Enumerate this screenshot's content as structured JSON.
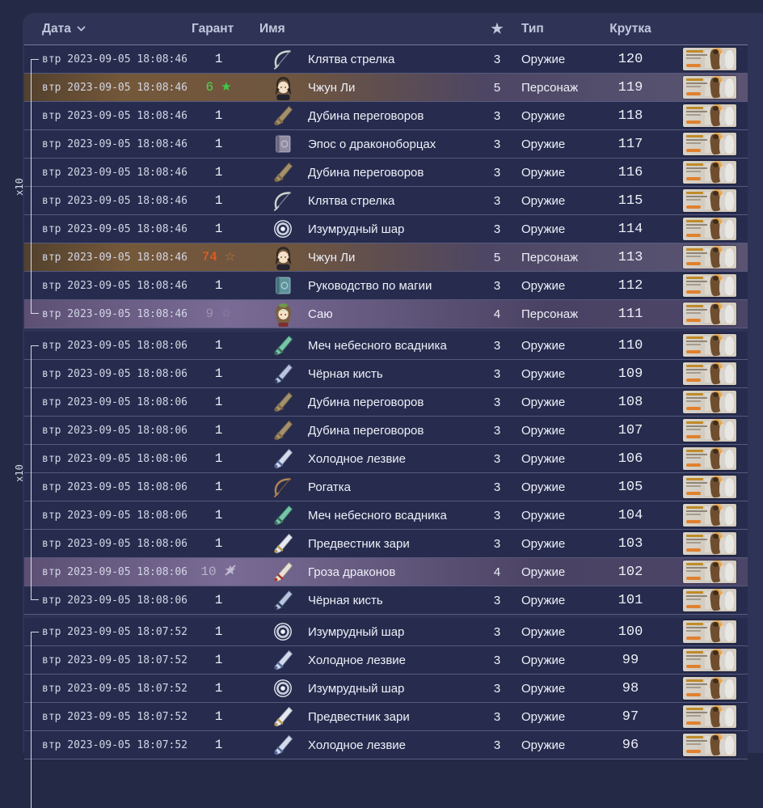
{
  "header": {
    "date_label": "Дата",
    "guarantee_label": "Гарант",
    "name_label": "Имя",
    "stars_label": "★",
    "type_label": "Тип",
    "roll_label": "Крутка"
  },
  "colors": {
    "panel_bg": "#2f3457",
    "row_bg": "#272c4e",
    "row_5star_accent": "#74583a",
    "row_4star_accent": "#796b95",
    "pity": {
      "win": {
        "num": "#46da4f",
        "icon": "#3ecb47"
      },
      "lose": {
        "num": "#ff5c1e",
        "icon": "#c27a42"
      },
      "char4": {
        "num": "#9a94ad",
        "icon": "#8d87a3"
      },
      "weap4": {
        "num": "#b9b3c9",
        "icon": "#c6c1d5"
      }
    }
  },
  "groups": [
    {
      "label": "x10",
      "rows": [
        {
          "date": "втр 2023-09-05 18:08:46",
          "pity": "1",
          "pity_style": "",
          "pity_icon": "",
          "item": "Клятва стрелка",
          "item_icon": "bow-icon",
          "stars": "3",
          "type": "Оружие",
          "roll": "120",
          "highlight": ""
        },
        {
          "date": "втр 2023-09-05 18:08:46",
          "pity": "6",
          "pity_style": "win",
          "pity_icon": "star-filled-icon",
          "item": "Чжун Ли",
          "item_icon": "zhongli-portrait-icon",
          "stars": "5",
          "type": "Персонаж",
          "roll": "119",
          "highlight": "gold"
        },
        {
          "date": "втр 2023-09-05 18:08:46",
          "pity": "1",
          "pity_style": "",
          "pity_icon": "",
          "item": "Дубина переговоров",
          "item_icon": "claymore-icon",
          "stars": "3",
          "type": "Оружие",
          "roll": "118",
          "highlight": ""
        },
        {
          "date": "втр 2023-09-05 18:08:46",
          "pity": "1",
          "pity_style": "",
          "pity_icon": "",
          "item": "Эпос о драконоборцах",
          "item_icon": "book-purple-icon",
          "stars": "3",
          "type": "Оружие",
          "roll": "117",
          "highlight": ""
        },
        {
          "date": "втр 2023-09-05 18:08:46",
          "pity": "1",
          "pity_style": "",
          "pity_icon": "",
          "item": "Дубина переговоров",
          "item_icon": "claymore-icon",
          "stars": "3",
          "type": "Оружие",
          "roll": "116",
          "highlight": ""
        },
        {
          "date": "втр 2023-09-05 18:08:46",
          "pity": "1",
          "pity_style": "",
          "pity_icon": "",
          "item": "Клятва стрелка",
          "item_icon": "bow-icon",
          "stars": "3",
          "type": "Оружие",
          "roll": "115",
          "highlight": ""
        },
        {
          "date": "втр 2023-09-05 18:08:46",
          "pity": "1",
          "pity_style": "",
          "pity_icon": "",
          "item": "Изумрудный шар",
          "item_icon": "catalyst-icon",
          "stars": "3",
          "type": "Оружие",
          "roll": "114",
          "highlight": ""
        },
        {
          "date": "втр 2023-09-05 18:08:46",
          "pity": "74",
          "pity_style": "lose",
          "pity_icon": "star-outline-icon",
          "item": "Чжун Ли",
          "item_icon": "zhongli-portrait-icon",
          "stars": "5",
          "type": "Персонаж",
          "roll": "113",
          "highlight": "gold"
        },
        {
          "date": "втр 2023-09-05 18:08:46",
          "pity": "1",
          "pity_style": "",
          "pity_icon": "",
          "item": "Руководство по магии",
          "item_icon": "book-teal-icon",
          "stars": "3",
          "type": "Оружие",
          "roll": "112",
          "highlight": ""
        },
        {
          "date": "втр 2023-09-05 18:08:46",
          "pity": "9",
          "pity_style": "char4",
          "pity_icon": "star-outline-icon",
          "item": "Саю",
          "item_icon": "sayu-portrait-icon",
          "stars": "4",
          "type": "Персонаж",
          "roll": "111",
          "highlight": "purple"
        }
      ]
    },
    {
      "label": "x10",
      "rows": [
        {
          "date": "втр 2023-09-05 18:08:06",
          "pity": "1",
          "pity_style": "",
          "pity_icon": "",
          "item": "Меч небесного всадника",
          "item_icon": "sword-teal-icon",
          "stars": "3",
          "type": "Оружие",
          "roll": "110",
          "highlight": ""
        },
        {
          "date": "втр 2023-09-05 18:08:06",
          "pity": "1",
          "pity_style": "",
          "pity_icon": "",
          "item": "Чёрная кисть",
          "item_icon": "polearm-dark-icon",
          "stars": "3",
          "type": "Оружие",
          "roll": "109",
          "highlight": ""
        },
        {
          "date": "втр 2023-09-05 18:08:06",
          "pity": "1",
          "pity_style": "",
          "pity_icon": "",
          "item": "Дубина переговоров",
          "item_icon": "claymore-icon",
          "stars": "3",
          "type": "Оружие",
          "roll": "108",
          "highlight": ""
        },
        {
          "date": "втр 2023-09-05 18:08:06",
          "pity": "1",
          "pity_style": "",
          "pity_icon": "",
          "item": "Дубина переговоров",
          "item_icon": "claymore-icon",
          "stars": "3",
          "type": "Оружие",
          "roll": "107",
          "highlight": ""
        },
        {
          "date": "втр 2023-09-05 18:08:06",
          "pity": "1",
          "pity_style": "",
          "pity_icon": "",
          "item": "Холодное лезвие",
          "item_icon": "sword-blue-icon",
          "stars": "3",
          "type": "Оружие",
          "roll": "106",
          "highlight": ""
        },
        {
          "date": "втр 2023-09-05 18:08:06",
          "pity": "1",
          "pity_style": "",
          "pity_icon": "",
          "item": "Рогатка",
          "item_icon": "bow-brown-icon",
          "stars": "3",
          "type": "Оружие",
          "roll": "105",
          "highlight": ""
        },
        {
          "date": "втр 2023-09-05 18:08:06",
          "pity": "1",
          "pity_style": "",
          "pity_icon": "",
          "item": "Меч небесного всадника",
          "item_icon": "sword-teal-icon",
          "stars": "3",
          "type": "Оружие",
          "roll": "104",
          "highlight": ""
        },
        {
          "date": "втр 2023-09-05 18:08:06",
          "pity": "1",
          "pity_style": "",
          "pity_icon": "",
          "item": "Предвестник зари",
          "item_icon": "sword-light-icon",
          "stars": "3",
          "type": "Оружие",
          "roll": "103",
          "highlight": ""
        },
        {
          "date": "втр 2023-09-05 18:08:06",
          "pity": "10",
          "pity_style": "weap4",
          "pity_icon": "star-off-icon",
          "item": "Гроза драконов",
          "item_icon": "polearm-red-icon",
          "stars": "4",
          "type": "Оружие",
          "roll": "102",
          "highlight": "purple"
        },
        {
          "date": "втр 2023-09-05 18:08:06",
          "pity": "1",
          "pity_style": "",
          "pity_icon": "",
          "item": "Чёрная кисть",
          "item_icon": "polearm-dark-icon",
          "stars": "3",
          "type": "Оружие",
          "roll": "101",
          "highlight": ""
        }
      ]
    },
    {
      "label": "",
      "rows": [
        {
          "date": "втр 2023-09-05 18:07:52",
          "pity": "1",
          "pity_style": "",
          "pity_icon": "",
          "item": "Изумрудный шар",
          "item_icon": "catalyst-icon",
          "stars": "3",
          "type": "Оружие",
          "roll": "100",
          "highlight": ""
        },
        {
          "date": "втр 2023-09-05 18:07:52",
          "pity": "1",
          "pity_style": "",
          "pity_icon": "",
          "item": "Холодное лезвие",
          "item_icon": "sword-blue-icon",
          "stars": "3",
          "type": "Оружие",
          "roll": "99",
          "highlight": ""
        },
        {
          "date": "втр 2023-09-05 18:07:52",
          "pity": "1",
          "pity_style": "",
          "pity_icon": "",
          "item": "Изумрудный шар",
          "item_icon": "catalyst-icon",
          "stars": "3",
          "type": "Оружие",
          "roll": "98",
          "highlight": ""
        },
        {
          "date": "втр 2023-09-05 18:07:52",
          "pity": "1",
          "pity_style": "",
          "pity_icon": "",
          "item": "Предвестник зари",
          "item_icon": "sword-light-icon",
          "stars": "3",
          "type": "Оружие",
          "roll": "97",
          "highlight": ""
        },
        {
          "date": "втр 2023-09-05 18:07:52",
          "pity": "1",
          "pity_style": "",
          "pity_icon": "",
          "item": "Холодное лезвие",
          "item_icon": "sword-blue-icon",
          "stars": "3",
          "type": "Оружие",
          "roll": "96",
          "highlight": ""
        }
      ]
    }
  ]
}
